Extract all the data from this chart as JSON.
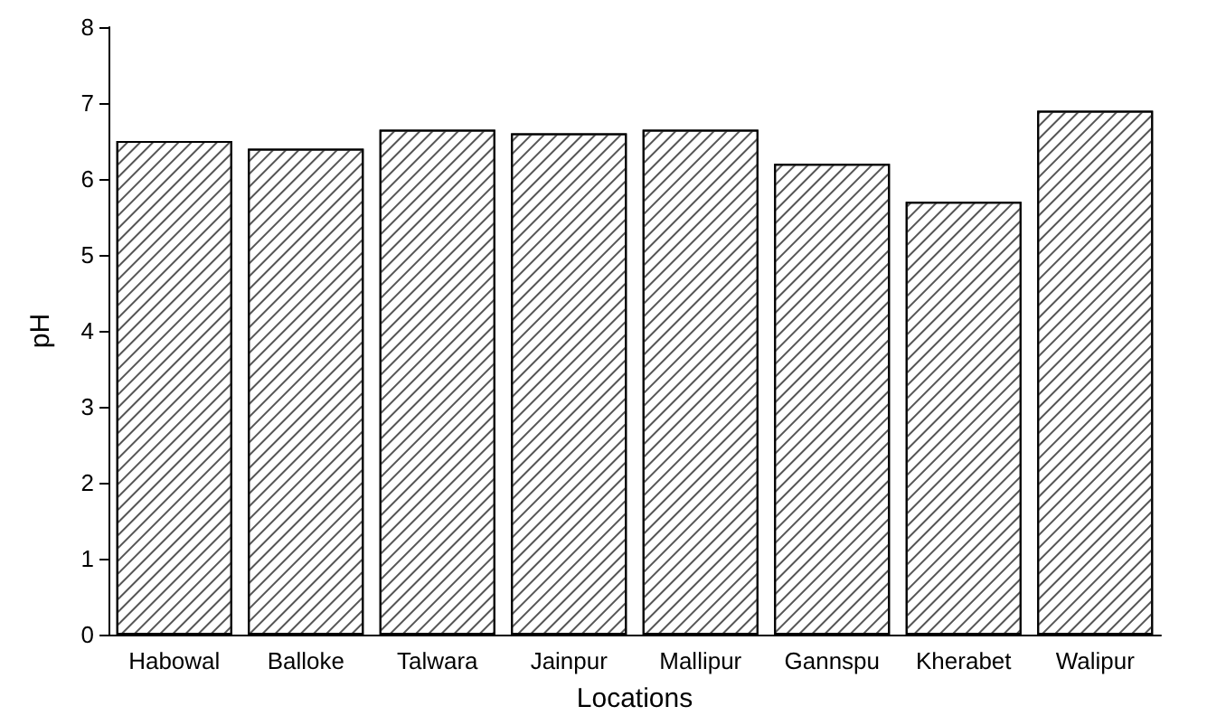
{
  "chart_data": {
    "type": "bar",
    "xlabel": "Locations",
    "ylabel": "pH",
    "categories": [
      "Habowal",
      "Balloke",
      "Talwara",
      "Jainpur",
      "Mallipur",
      "Gannspu",
      "Kherabet",
      "Walipur"
    ],
    "values": [
      6.5,
      6.4,
      6.65,
      6.6,
      6.65,
      6.2,
      5.7,
      6.9
    ],
    "color": "#ffffff",
    "ylim": [
      0,
      8
    ],
    "yticks": [
      0,
      1,
      2,
      3,
      4,
      5,
      6,
      7,
      8
    ],
    "grid": false
  }
}
